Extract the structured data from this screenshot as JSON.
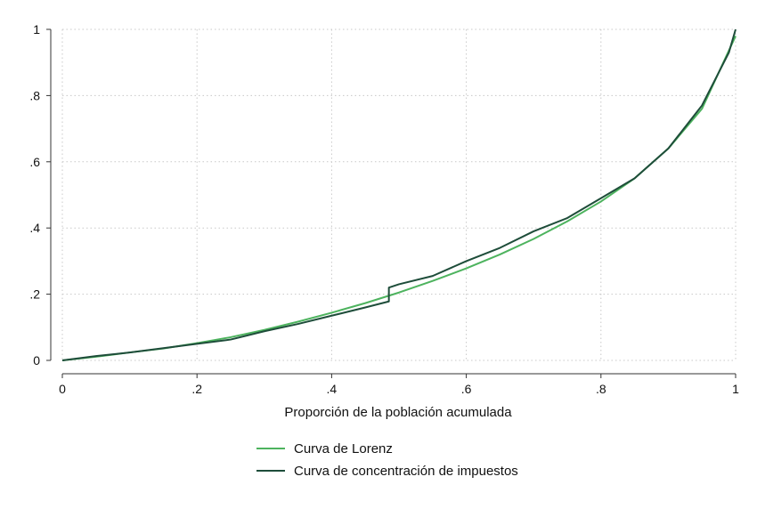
{
  "chart_data": {
    "type": "line",
    "xlabel": "Proporción de la población acumulada",
    "ylabel": "",
    "xlim": [
      0,
      1
    ],
    "ylim": [
      0,
      1
    ],
    "grid": true,
    "legend_position": "bottom",
    "x_ticks": [
      {
        "value": 0,
        "label": "0"
      },
      {
        "value": 0.2,
        "label": ".2"
      },
      {
        "value": 0.4,
        "label": ".4"
      },
      {
        "value": 0.6,
        "label": ".6"
      },
      {
        "value": 0.8,
        "label": ".8"
      },
      {
        "value": 1,
        "label": "1"
      }
    ],
    "y_ticks": [
      {
        "value": 0,
        "label": "0"
      },
      {
        "value": 0.2,
        "label": ".2"
      },
      {
        "value": 0.4,
        "label": ".4"
      },
      {
        "value": 0.6,
        "label": ".6"
      },
      {
        "value": 0.8,
        "label": ".8"
      },
      {
        "value": 1,
        "label": "1"
      }
    ],
    "series": [
      {
        "name": "Curva de Lorenz",
        "color": "#4db35e",
        "x": [
          0,
          0.05,
          0.1,
          0.15,
          0.2,
          0.25,
          0.3,
          0.35,
          0.4,
          0.45,
          0.5,
          0.55,
          0.6,
          0.65,
          0.7,
          0.75,
          0.8,
          0.85,
          0.9,
          0.95,
          1.0
        ],
        "y": [
          0,
          0.011,
          0.024,
          0.036,
          0.052,
          0.07,
          0.092,
          0.117,
          0.144,
          0.173,
          0.205,
          0.24,
          0.278,
          0.32,
          0.367,
          0.42,
          0.48,
          0.55,
          0.64,
          0.76,
          0.98
        ]
      },
      {
        "name": "Curva de concentración de impuestos",
        "color": "#1e4d3a",
        "x": [
          0,
          0.05,
          0.1,
          0.15,
          0.2,
          0.25,
          0.3,
          0.35,
          0.4,
          0.45,
          0.485,
          0.485,
          0.5,
          0.55,
          0.6,
          0.65,
          0.7,
          0.75,
          0.8,
          0.85,
          0.9,
          0.95,
          0.99,
          1.0
        ],
        "y": [
          0,
          0.013,
          0.024,
          0.037,
          0.05,
          0.063,
          0.088,
          0.11,
          0.135,
          0.16,
          0.178,
          0.22,
          0.23,
          0.255,
          0.3,
          0.34,
          0.39,
          0.43,
          0.49,
          0.55,
          0.64,
          0.77,
          0.93,
          1.0
        ]
      }
    ]
  }
}
